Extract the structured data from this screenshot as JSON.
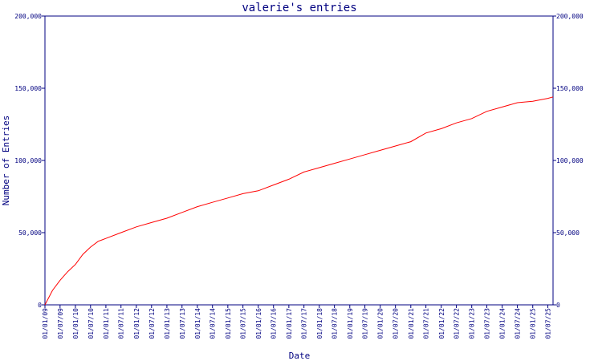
{
  "chart_data": {
    "type": "line",
    "title": "valerie's entries",
    "xlabel": "Date",
    "ylabel": "Number of Entries",
    "ylim": [
      0,
      200000
    ],
    "y_ticks": [
      0,
      50000,
      100000,
      150000,
      200000
    ],
    "y_tick_labels": [
      "0",
      "50,000",
      "100,000",
      "150,000",
      "200,000"
    ],
    "x_tick_labels": [
      "01/01/09",
      "01/07/09",
      "01/01/10",
      "01/07/10",
      "01/01/11",
      "01/07/11",
      "01/01/12",
      "01/07/12",
      "01/01/13",
      "01/07/13",
      "01/01/14",
      "01/07/14",
      "01/01/15",
      "01/07/15",
      "01/01/16",
      "01/07/16",
      "01/01/17",
      "01/07/17",
      "01/01/18",
      "01/07/18",
      "01/01/19",
      "01/07/19",
      "01/01/20",
      "01/07/20",
      "01/01/21",
      "01/07/21",
      "01/01/22",
      "01/07/22",
      "01/01/23",
      "01/07/23",
      "01/01/24",
      "01/07/24",
      "01/01/25",
      "01/07/25"
    ],
    "grid": false,
    "colors": {
      "axis": "#000080",
      "line": "#ff0000",
      "text": "#000080"
    },
    "series": [
      {
        "x": [
          "01/01/09",
          "01/04/09",
          "01/07/09",
          "01/10/09",
          "01/01/10",
          "01/04/10",
          "01/07/10",
          "01/10/10",
          "01/01/11",
          "01/07/11",
          "01/01/12",
          "01/07/12",
          "01/01/13",
          "01/07/13",
          "01/01/14",
          "01/07/14",
          "01/01/15",
          "01/07/15",
          "01/01/16",
          "01/07/16",
          "01/01/17",
          "01/07/17",
          "01/01/18",
          "01/07/18",
          "01/01/19",
          "01/07/19",
          "01/01/20",
          "01/07/20",
          "01/01/21",
          "01/07/21",
          "01/01/22",
          "01/07/22",
          "01/01/23",
          "01/07/23",
          "01/01/24",
          "01/07/24",
          "01/01/25",
          "01/07/25",
          "01/09/25"
        ],
        "values": [
          0,
          10000,
          17000,
          23000,
          28000,
          35000,
          40000,
          44000,
          46000,
          50000,
          54000,
          57000,
          60000,
          64000,
          68000,
          71000,
          74000,
          77000,
          79000,
          83000,
          87000,
          92000,
          95000,
          98000,
          101000,
          104000,
          107000,
          110000,
          113000,
          119000,
          122000,
          126000,
          129000,
          134000,
          137000,
          140000,
          141000,
          143000,
          144000
        ]
      }
    ]
  }
}
